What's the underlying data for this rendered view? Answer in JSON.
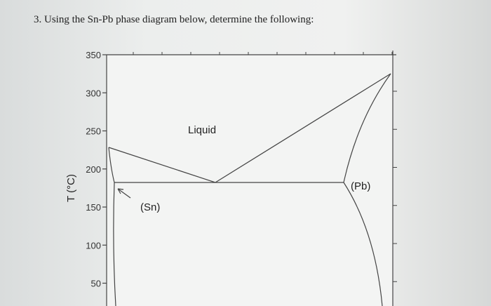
{
  "question": "3. Using the Sn-Pb phase diagram below, determine the following:",
  "diagram": {
    "y_axis_label": "T (°C)",
    "y_ticks": [
      350,
      300,
      250,
      200,
      150,
      100,
      50
    ],
    "regions": {
      "liquid": "Liquid",
      "sn": "(Sn)",
      "pb": "(Pb)"
    }
  }
}
